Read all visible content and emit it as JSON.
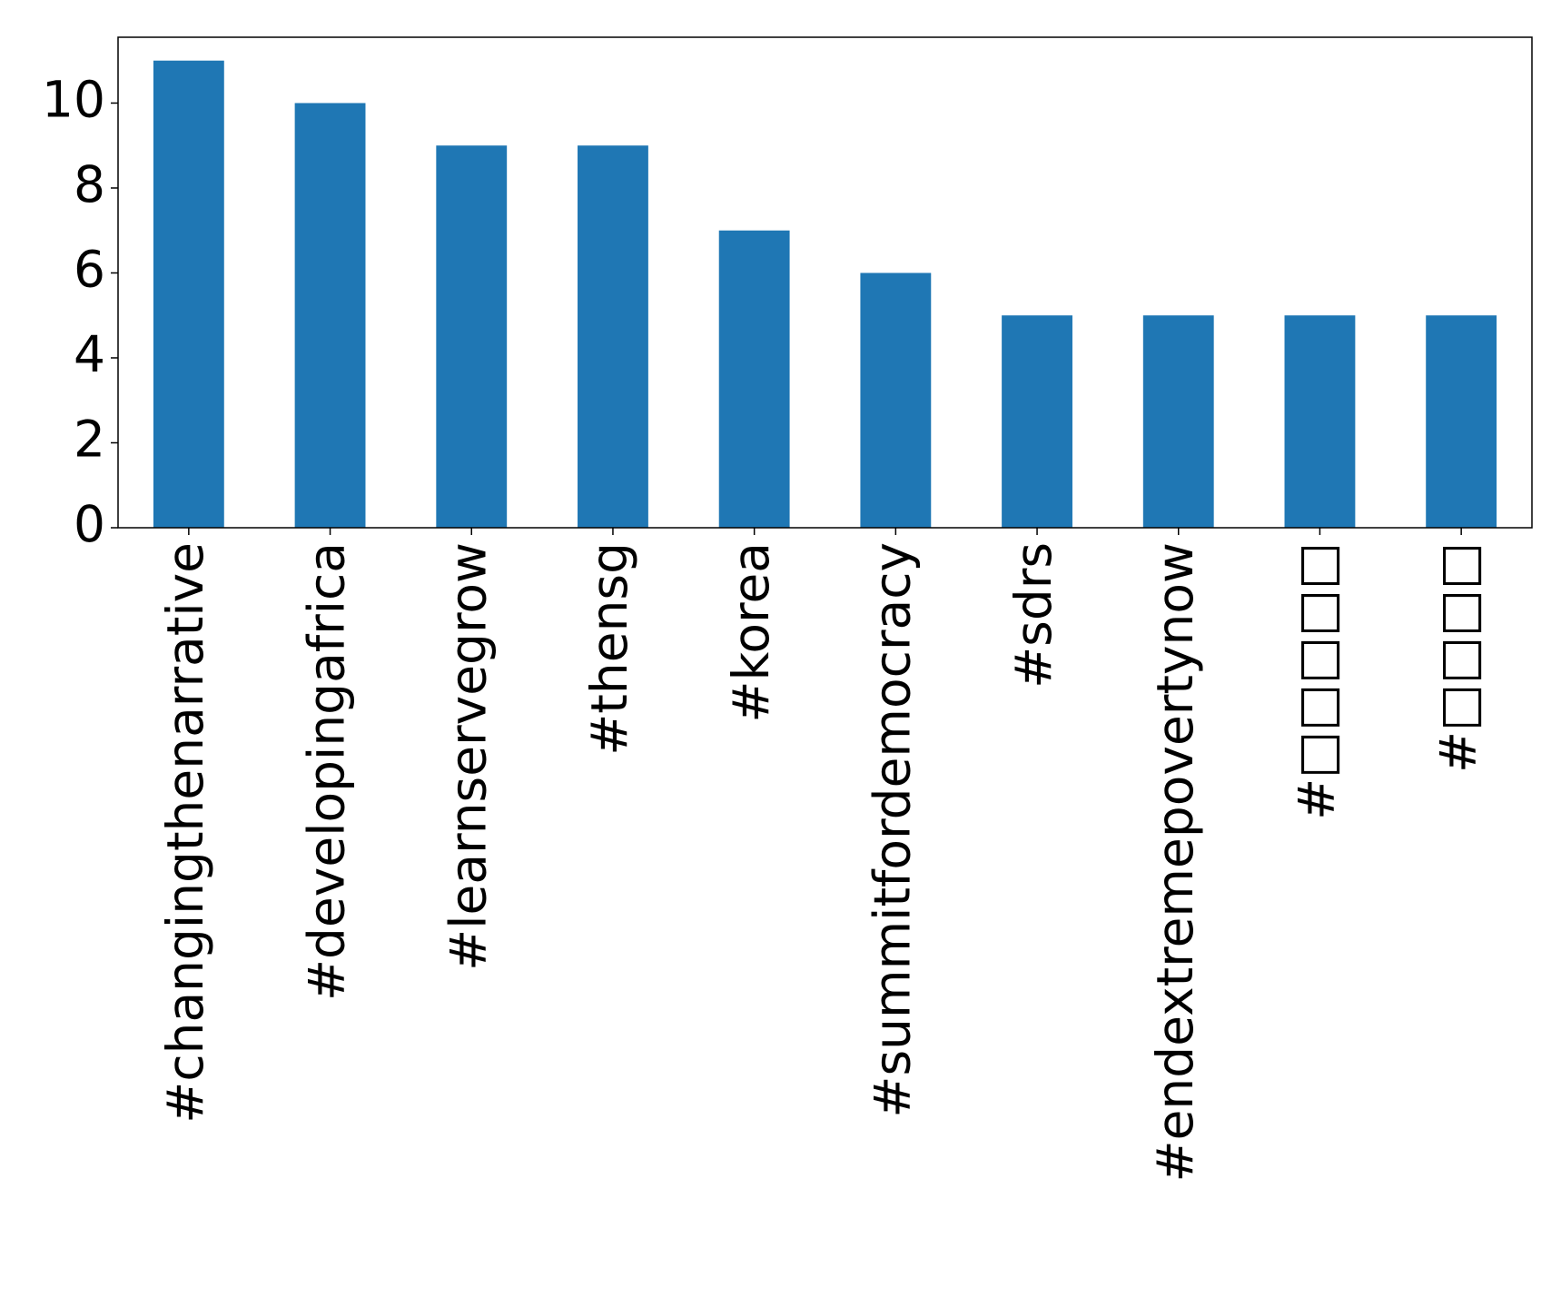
{
  "chart_data": {
    "type": "bar",
    "categories": [
      "#changingthenarrative",
      "#developingafrica",
      "#learnservegrow",
      "#thensg",
      "#korea",
      "#summitfordemocracy",
      "#sdrs",
      "#endextremepovertynow",
      "#□□□□□",
      "#□□□□"
    ],
    "values": [
      11,
      10,
      9,
      9,
      7,
      6,
      5,
      5,
      5,
      5
    ],
    "color": "#1f77b4",
    "ylim": [
      0,
      11.55
    ],
    "yticks": [
      0,
      2,
      4,
      6,
      8,
      10
    ],
    "grid": false
  }
}
